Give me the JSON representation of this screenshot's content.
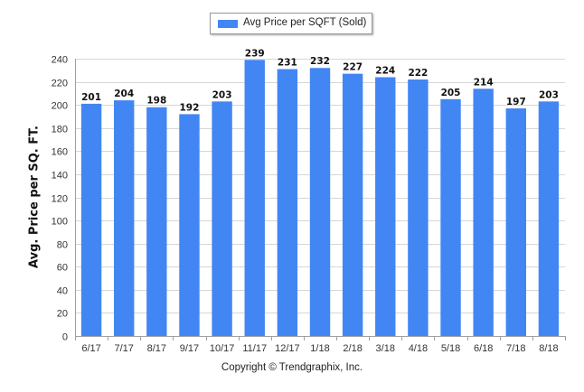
{
  "legend": {
    "label": "Avg Price per SQFT (Sold)",
    "color": "#4286f4"
  },
  "footer": {
    "copyright": "Copyright © Trendgraphix, Inc."
  },
  "chart_data": {
    "type": "bar",
    "title": "",
    "xlabel": "",
    "ylabel": "Avg. Price per SQ. FT.",
    "categories": [
      "6/17",
      "7/17",
      "8/17",
      "9/17",
      "10/17",
      "11/17",
      "12/17",
      "1/18",
      "2/18",
      "3/18",
      "4/18",
      "5/18",
      "6/18",
      "7/18",
      "8/18"
    ],
    "series": [
      {
        "name": "Avg Price per SQFT (Sold)",
        "values": [
          201,
          204,
          198,
          192,
          203,
          239,
          231,
          232,
          227,
          224,
          222,
          205,
          214,
          197,
          203
        ]
      }
    ],
    "ylim": [
      0,
      240
    ],
    "yticks": [
      0,
      20,
      40,
      60,
      80,
      100,
      120,
      140,
      160,
      180,
      200,
      220,
      240
    ],
    "grid": true,
    "legend_position": "top-center",
    "data_labels": true,
    "bar_color": "#4286f4"
  }
}
